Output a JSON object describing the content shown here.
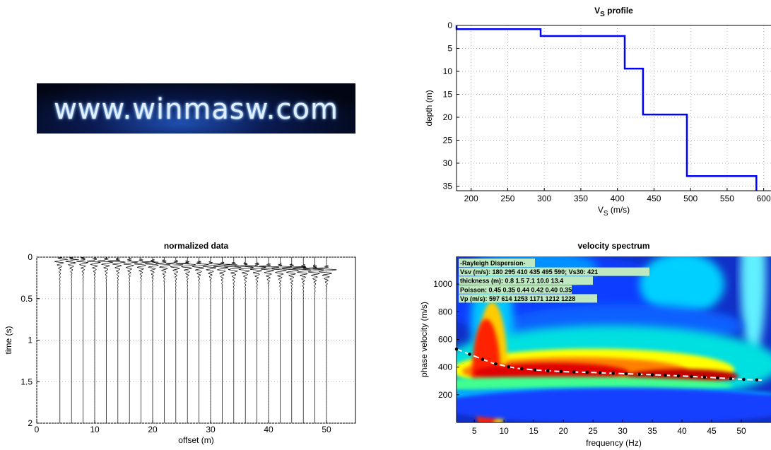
{
  "logo": {
    "text": "www.winmasw.com"
  },
  "colors": {
    "profile_line": "#0000ff",
    "grid": "#b8b8b8",
    "curve_dots": "#000000",
    "curve_dash": "#ffffff"
  },
  "chart_data": [
    {
      "id": "vs-profile",
      "type": "line",
      "title": "V",
      "title_sub": "S",
      "title_rest": " profile",
      "xlabel": "V",
      "xlabel_sub": "S",
      "xlabel_rest": " (m/s)",
      "ylabel": "depth (m)",
      "xlim": [
        180,
        610
      ],
      "ylim": [
        0,
        36
      ],
      "y_reversed": true,
      "xticks": [
        200,
        250,
        300,
        350,
        400,
        450,
        500,
        550,
        600
      ],
      "yticks": [
        0,
        5,
        10,
        15,
        20,
        25,
        30,
        35
      ],
      "grid": true,
      "series": [
        {
          "vs": [
            180,
            295,
            410,
            435,
            495,
            590
          ],
          "thickness": [
            0.8,
            1.5,
            7.1,
            10.0,
            13.4
          ],
          "max_depth": 36
        }
      ]
    },
    {
      "id": "normalized-data",
      "type": "line",
      "title": "normalized data",
      "xlabel": "offset (m)",
      "ylabel": "time (s)",
      "xlim": [
        0,
        55
      ],
      "ylim": [
        0,
        2
      ],
      "y_reversed": true,
      "xticks": [
        0,
        10,
        20,
        30,
        40,
        50
      ],
      "yticks": [
        0,
        0.5,
        1,
        1.5,
        2
      ],
      "grid": true,
      "traces": {
        "first_offset": 4,
        "spacing": 2,
        "count": 24,
        "first_arrival_s": 0.02,
        "last_arrival_s": 0.13
      }
    },
    {
      "id": "velocity-spectrum",
      "type": "heatmap",
      "title": "velocity spectrum",
      "xlabel": "frequency (Hz)",
      "ylabel": "phase velocity (m/s)",
      "xlim": [
        2,
        55
      ],
      "ylim": [
        0,
        1200
      ],
      "xticks": [
        5,
        10,
        15,
        20,
        25,
        30,
        35,
        40,
        45,
        50
      ],
      "yticks": [
        200,
        400,
        600,
        800,
        1000
      ],
      "dispersion_curve": {
        "freq": [
          2,
          5,
          8,
          10,
          12,
          15,
          20,
          25,
          30,
          35,
          40,
          45,
          50,
          54
        ],
        "velocity": [
          530,
          480,
          430,
          410,
          392,
          380,
          367,
          361,
          353,
          345,
          336,
          325,
          312,
          305
        ]
      },
      "legend_box": [
        "-Rayleigh Dispersion-",
        "Vsv (m/s): 180  295  410  435  495  590; Vs30: 421",
        "thickness (m): 0.8    1.5    7.1   10.0   13.4",
        "Poisson: 0.45  0.35  0.44  0.42  0.40  0.35",
        "Vp (m/s): 597  614 1253 1171 1212 1228"
      ]
    }
  ]
}
